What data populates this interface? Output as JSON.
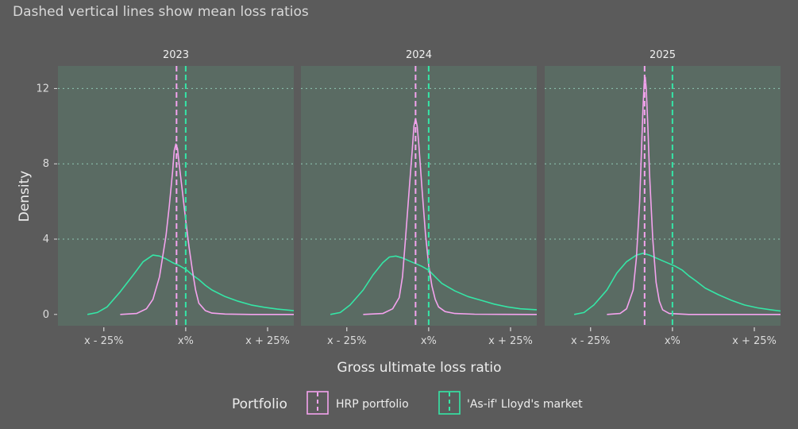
{
  "subtitle": "Dashed vertical lines show mean loss ratios",
  "chart_data": {
    "type": "area",
    "facets": [
      "2023",
      "2024",
      "2025"
    ],
    "xlabel": "Gross ultimate loss ratio",
    "ylabel": "Density",
    "x_ticks": [
      {
        "value": -25,
        "label": "x - 25%"
      },
      {
        "value": 0,
        "label": "x%"
      },
      {
        "value": 25,
        "label": "x + 25%"
      }
    ],
    "x_range": [
      -39,
      33
    ],
    "y_ticks": [
      0,
      4,
      8,
      12
    ],
    "y_range": [
      -0.6,
      13.2
    ],
    "grid": "horizontal dotted",
    "legend": {
      "title": "Portfolio",
      "position": "bottom",
      "entries": [
        {
          "key": "hrp",
          "label": "HRP portfolio",
          "color": "#f4a3ee"
        },
        {
          "key": "market",
          "label": "'As-if' Lloyd's market",
          "color": "#35e6a6"
        }
      ]
    },
    "panels": [
      {
        "facet": "2023",
        "means": {
          "hrp": -2.8,
          "market": 0.0
        },
        "series": {
          "hrp": [
            [
              -20,
              0
            ],
            [
              -15,
              0.05
            ],
            [
              -12,
              0.3
            ],
            [
              -10,
              0.8
            ],
            [
              -8,
              2.0
            ],
            [
              -6,
              4.2
            ],
            [
              -5,
              5.8
            ],
            [
              -4,
              7.6
            ],
            [
              -3.5,
              8.7
            ],
            [
              -3,
              9.05
            ],
            [
              -2.5,
              8.8
            ],
            [
              -2,
              8.0
            ],
            [
              -1,
              6.5
            ],
            [
              0,
              5.0
            ],
            [
              1,
              3.6
            ],
            [
              2,
              2.4
            ],
            [
              3,
              1.3
            ],
            [
              4,
              0.6
            ],
            [
              6,
              0.2
            ],
            [
              8,
              0.07
            ],
            [
              12,
              0.02
            ],
            [
              20,
              0
            ],
            [
              33,
              0
            ]
          ],
          "market": [
            [
              -30,
              0
            ],
            [
              -27,
              0.1
            ],
            [
              -24,
              0.4
            ],
            [
              -20,
              1.2
            ],
            [
              -16,
              2.1
            ],
            [
              -13,
              2.8
            ],
            [
              -10,
              3.15
            ],
            [
              -8,
              3.1
            ],
            [
              -6,
              2.95
            ],
            [
              -4,
              2.75
            ],
            [
              -2,
              2.6
            ],
            [
              0,
              2.4
            ],
            [
              2,
              2.1
            ],
            [
              4,
              1.85
            ],
            [
              6,
              1.55
            ],
            [
              8,
              1.3
            ],
            [
              12,
              0.95
            ],
            [
              16,
              0.7
            ],
            [
              20,
              0.5
            ],
            [
              24,
              0.38
            ],
            [
              28,
              0.28
            ],
            [
              33,
              0.2
            ]
          ]
        }
      },
      {
        "facet": "2024",
        "means": {
          "hrp": -4.0,
          "market": 0.0
        },
        "series": {
          "hrp": [
            [
              -20,
              0
            ],
            [
              -14,
              0.05
            ],
            [
              -11,
              0.3
            ],
            [
              -9,
              0.9
            ],
            [
              -8,
              2.0
            ],
            [
              -7,
              4.2
            ],
            [
              -6,
              6.5
            ],
            [
              -5,
              8.8
            ],
            [
              -4.5,
              10.0
            ],
            [
              -4,
              10.4
            ],
            [
              -3.5,
              10.0
            ],
            [
              -3,
              9.0
            ],
            [
              -2,
              6.6
            ],
            [
              -1,
              4.3
            ],
            [
              0,
              2.6
            ],
            [
              1,
              1.5
            ],
            [
              2,
              0.8
            ],
            [
              3,
              0.4
            ],
            [
              5,
              0.15
            ],
            [
              8,
              0.05
            ],
            [
              14,
              0.01
            ],
            [
              33,
              0
            ]
          ],
          "market": [
            [
              -30,
              0
            ],
            [
              -27,
              0.1
            ],
            [
              -24,
              0.5
            ],
            [
              -20,
              1.3
            ],
            [
              -17,
              2.1
            ],
            [
              -14,
              2.75
            ],
            [
              -12,
              3.05
            ],
            [
              -10,
              3.1
            ],
            [
              -8,
              3.0
            ],
            [
              -6,
              2.85
            ],
            [
              -4,
              2.7
            ],
            [
              -2,
              2.55
            ],
            [
              0,
              2.35
            ],
            [
              2,
              2.0
            ],
            [
              4,
              1.65
            ],
            [
              6,
              1.45
            ],
            [
              8,
              1.25
            ],
            [
              12,
              0.95
            ],
            [
              16,
              0.75
            ],
            [
              20,
              0.55
            ],
            [
              24,
              0.4
            ],
            [
              28,
              0.3
            ],
            [
              33,
              0.25
            ]
          ]
        }
      },
      {
        "facet": "2025",
        "means": {
          "hrp": -8.5,
          "market": 0.0
        },
        "series": {
          "hrp": [
            [
              -20,
              0
            ],
            [
              -16,
              0.05
            ],
            [
              -14,
              0.3
            ],
            [
              -12,
              1.3
            ],
            [
              -11,
              3.0
            ],
            [
              -10,
              6.0
            ],
            [
              -9.5,
              8.5
            ],
            [
              -9,
              11.0
            ],
            [
              -8.6,
              12.4
            ],
            [
              -8.3,
              12.6
            ],
            [
              -8,
              12.0
            ],
            [
              -7.5,
              10.0
            ],
            [
              -7,
              7.5
            ],
            [
              -6,
              4.0
            ],
            [
              -5,
              1.7
            ],
            [
              -4,
              0.7
            ],
            [
              -3,
              0.25
            ],
            [
              -1,
              0.05
            ],
            [
              5,
              0
            ],
            [
              33,
              0
            ]
          ],
          "market": [
            [
              -30,
              0
            ],
            [
              -27,
              0.1
            ],
            [
              -24,
              0.5
            ],
            [
              -20,
              1.3
            ],
            [
              -17,
              2.2
            ],
            [
              -14,
              2.8
            ],
            [
              -11,
              3.15
            ],
            [
              -9,
              3.25
            ],
            [
              -7,
              3.15
            ],
            [
              -5,
              3.0
            ],
            [
              -3,
              2.85
            ],
            [
              -1,
              2.7
            ],
            [
              1,
              2.55
            ],
            [
              3,
              2.35
            ],
            [
              5,
              2.05
            ],
            [
              7,
              1.8
            ],
            [
              10,
              1.4
            ],
            [
              14,
              1.05
            ],
            [
              18,
              0.75
            ],
            [
              22,
              0.5
            ],
            [
              26,
              0.35
            ],
            [
              30,
              0.25
            ],
            [
              33,
              0.18
            ]
          ]
        }
      }
    ]
  }
}
